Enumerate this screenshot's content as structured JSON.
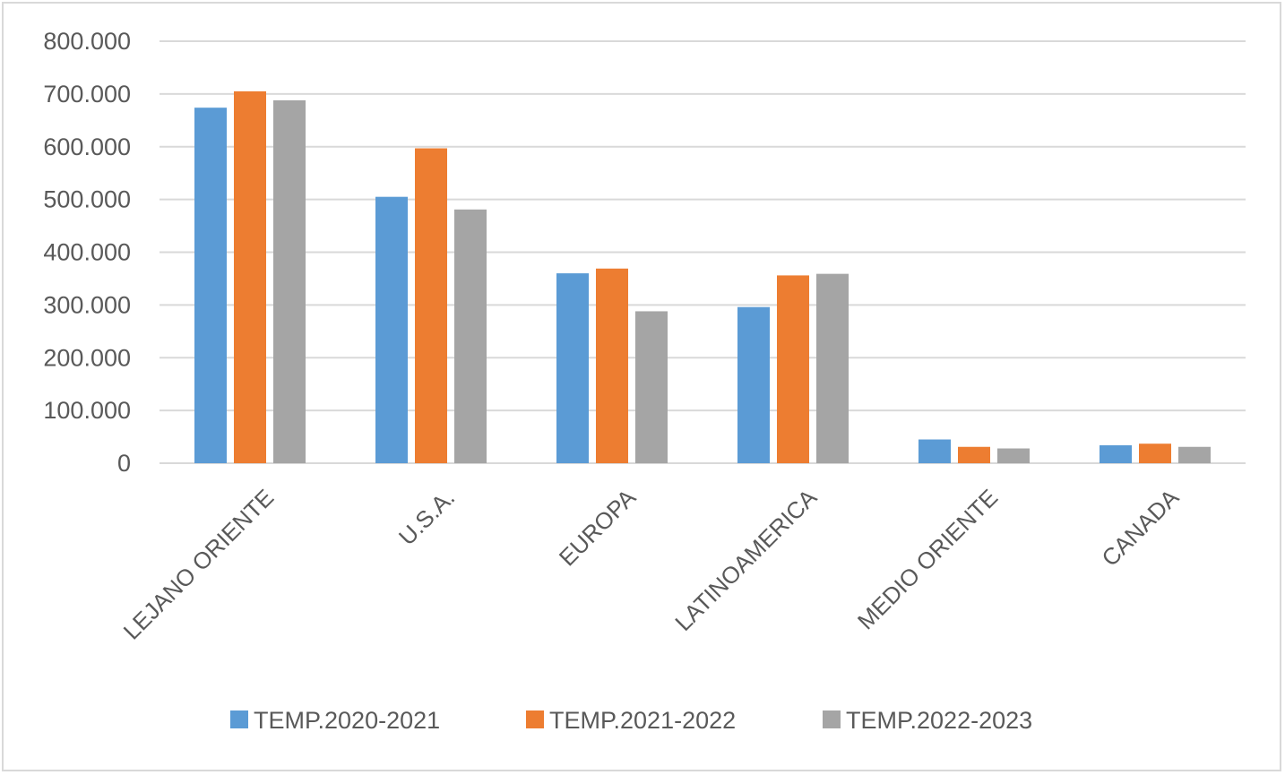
{
  "chart_data": {
    "type": "bar",
    "categories": [
      "LEJANO ORIENTE",
      "U.S.A.",
      "EUROPA",
      "LATINOAMERICA",
      "MEDIO ORIENTE",
      "CANADA"
    ],
    "series": [
      {
        "name": "TEMP.2020-2021",
        "color": "#5b9bd5",
        "values": [
          674000,
          505000,
          360000,
          296000,
          45000,
          34000
        ]
      },
      {
        "name": "TEMP.2021-2022",
        "color": "#ed7d31",
        "values": [
          705000,
          597000,
          369000,
          356000,
          31000,
          37000
        ]
      },
      {
        "name": "TEMP.2022-2023",
        "color": "#a5a5a5",
        "values": [
          688000,
          481000,
          288000,
          359000,
          28000,
          31000
        ]
      }
    ],
    "y_ticks": [
      "0",
      "100.000",
      "200.000",
      "300.000",
      "400.000",
      "500.000",
      "600.000",
      "700.000",
      "800.000"
    ],
    "ylim": [
      0,
      800000
    ],
    "grid": true,
    "legend_position": "bottom",
    "title": "",
    "xlabel": "",
    "ylabel": ""
  }
}
